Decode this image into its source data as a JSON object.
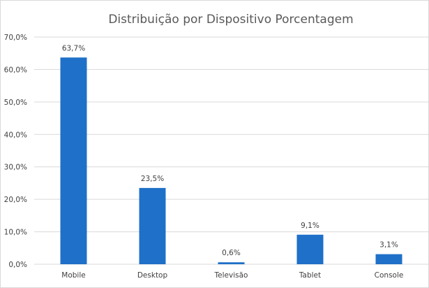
{
  "chart_data": {
    "type": "bar",
    "title": "Distribuição por Dispositivo Porcentagem",
    "xlabel": "",
    "ylabel": "",
    "categories": [
      "Mobile",
      "Desktop",
      "Televisão",
      "Tablet",
      "Console"
    ],
    "values": [
      63.7,
      23.5,
      0.6,
      9.1,
      3.1
    ],
    "data_labels": [
      "63,7%",
      "23,5%",
      "0,6%",
      "9,1%",
      "3,1%"
    ],
    "ylim": [
      0,
      70
    ],
    "y_ticks": [
      0,
      10,
      20,
      30,
      40,
      50,
      60,
      70
    ],
    "y_tick_labels": [
      "0,0%",
      "10,0%",
      "20,0%",
      "30,0%",
      "40,0%",
      "50,0%",
      "60,0%",
      "70,0%"
    ],
    "grid": true,
    "legend": "none",
    "colors": {
      "bar": "#1f70c8",
      "grid": "#d9d9d9",
      "text": "#404040",
      "title": "#595959"
    }
  }
}
